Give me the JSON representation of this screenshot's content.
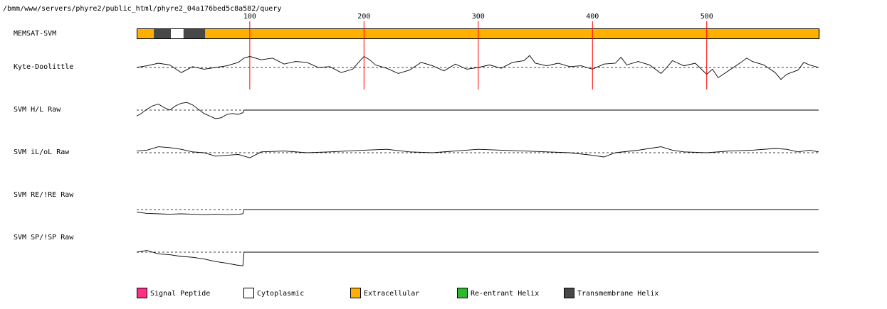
{
  "header": {
    "path": "/bmm/www/servers/phyre2/public_html/phyre2_04a176bed5c8a582/query"
  },
  "chart_data": {
    "type": "line",
    "sequence_length": 598,
    "x_ticks": [
      100,
      200,
      300,
      400,
      500
    ],
    "tick_labels": [
      "100",
      "200",
      "300",
      "400",
      "500"
    ],
    "tracks": [
      {
        "name": "MEMSAT-SVM",
        "kind": "segments",
        "segments": [
          {
            "start": 1,
            "end": 15,
            "type": "extracellular"
          },
          {
            "start": 16,
            "end": 30,
            "type": "transmembrane"
          },
          {
            "start": 31,
            "end": 41,
            "type": "cytoplasmic"
          },
          {
            "start": 42,
            "end": 60,
            "type": "transmembrane"
          },
          {
            "start": 61,
            "end": 598,
            "type": "extracellular"
          }
        ]
      },
      {
        "name": "Kyte-Doolittle",
        "kind": "profile",
        "points": [
          [
            1,
            0.0
          ],
          [
            10,
            0.2
          ],
          [
            20,
            0.5
          ],
          [
            30,
            0.3
          ],
          [
            40,
            -0.6
          ],
          [
            50,
            0.1
          ],
          [
            60,
            -0.2
          ],
          [
            70,
            0.0
          ],
          [
            80,
            0.2
          ],
          [
            90,
            0.6
          ],
          [
            95,
            1.1
          ],
          [
            100,
            1.3
          ],
          [
            110,
            0.9
          ],
          [
            120,
            1.1
          ],
          [
            130,
            0.4
          ],
          [
            140,
            0.7
          ],
          [
            150,
            0.6
          ],
          [
            160,
            0.0
          ],
          [
            170,
            0.1
          ],
          [
            180,
            -0.6
          ],
          [
            190,
            -0.2
          ],
          [
            200,
            1.3
          ],
          [
            205,
            0.9
          ],
          [
            210,
            0.3
          ],
          [
            220,
            -0.1
          ],
          [
            230,
            -0.7
          ],
          [
            240,
            -0.3
          ],
          [
            250,
            0.6
          ],
          [
            260,
            0.2
          ],
          [
            270,
            -0.4
          ],
          [
            280,
            0.4
          ],
          [
            290,
            -0.2
          ],
          [
            300,
            0.0
          ],
          [
            310,
            0.3
          ],
          [
            320,
            -0.1
          ],
          [
            330,
            0.6
          ],
          [
            340,
            0.8
          ],
          [
            345,
            1.4
          ],
          [
            350,
            0.5
          ],
          [
            360,
            0.2
          ],
          [
            370,
            0.5
          ],
          [
            380,
            0.1
          ],
          [
            390,
            0.2
          ],
          [
            400,
            -0.2
          ],
          [
            410,
            0.4
          ],
          [
            420,
            0.5
          ],
          [
            425,
            1.2
          ],
          [
            430,
            0.3
          ],
          [
            440,
            0.7
          ],
          [
            450,
            0.3
          ],
          [
            460,
            -0.7
          ],
          [
            465,
            0.0
          ],
          [
            470,
            0.8
          ],
          [
            480,
            0.2
          ],
          [
            490,
            0.5
          ],
          [
            500,
            -0.8
          ],
          [
            505,
            -0.2
          ],
          [
            510,
            -1.2
          ],
          [
            520,
            -0.3
          ],
          [
            530,
            0.6
          ],
          [
            535,
            1.1
          ],
          [
            540,
            0.7
          ],
          [
            550,
            0.3
          ],
          [
            560,
            -0.6
          ],
          [
            565,
            -1.4
          ],
          [
            570,
            -0.8
          ],
          [
            580,
            -0.3
          ],
          [
            585,
            0.6
          ],
          [
            590,
            0.3
          ],
          [
            598,
            0.0
          ]
        ],
        "range": [
          -2,
          2
        ]
      },
      {
        "name": "SVM H/L Raw",
        "kind": "profile",
        "points": [
          [
            1,
            -0.7
          ],
          [
            5,
            -0.4
          ],
          [
            10,
            0.1
          ],
          [
            15,
            0.5
          ],
          [
            20,
            0.7
          ],
          [
            25,
            0.3
          ],
          [
            30,
            0.0
          ],
          [
            35,
            0.5
          ],
          [
            40,
            0.8
          ],
          [
            45,
            0.9
          ],
          [
            50,
            0.6
          ],
          [
            55,
            0.1
          ],
          [
            60,
            -0.4
          ],
          [
            65,
            -0.7
          ],
          [
            70,
            -1.0
          ],
          [
            75,
            -0.9
          ],
          [
            80,
            -0.5
          ],
          [
            85,
            -0.4
          ],
          [
            90,
            -0.5
          ],
          [
            94,
            -0.3
          ],
          [
            95,
            0.0
          ],
          [
            598,
            0.0
          ]
        ],
        "range": [
          -2,
          2
        ]
      },
      {
        "name": "SVM iL/oL Raw",
        "kind": "profile",
        "points": [
          [
            1,
            0.2
          ],
          [
            10,
            0.3
          ],
          [
            20,
            0.7
          ],
          [
            30,
            0.6
          ],
          [
            40,
            0.4
          ],
          [
            50,
            0.1
          ],
          [
            60,
            0.0
          ],
          [
            70,
            -0.4
          ],
          [
            80,
            -0.3
          ],
          [
            90,
            -0.2
          ],
          [
            100,
            -0.6
          ],
          [
            110,
            0.1
          ],
          [
            130,
            0.2
          ],
          [
            150,
            0.0
          ],
          [
            170,
            0.1
          ],
          [
            200,
            0.3
          ],
          [
            220,
            0.4
          ],
          [
            240,
            0.1
          ],
          [
            260,
            0.0
          ],
          [
            280,
            0.2
          ],
          [
            300,
            0.4
          ],
          [
            320,
            0.3
          ],
          [
            340,
            0.2
          ],
          [
            360,
            0.1
          ],
          [
            380,
            0.0
          ],
          [
            400,
            -0.3
          ],
          [
            410,
            -0.5
          ],
          [
            420,
            0.0
          ],
          [
            440,
            0.3
          ],
          [
            450,
            0.5
          ],
          [
            460,
            0.7
          ],
          [
            470,
            0.3
          ],
          [
            480,
            0.1
          ],
          [
            500,
            0.0
          ],
          [
            520,
            0.2
          ],
          [
            540,
            0.3
          ],
          [
            560,
            0.5
          ],
          [
            570,
            0.4
          ],
          [
            580,
            0.1
          ],
          [
            590,
            0.3
          ],
          [
            598,
            0.1
          ]
        ],
        "range": [
          -2,
          2
        ]
      },
      {
        "name": "SVM RE/!RE Raw",
        "kind": "profile",
        "points": [
          [
            1,
            -0.3
          ],
          [
            10,
            -0.45
          ],
          [
            20,
            -0.5
          ],
          [
            30,
            -0.55
          ],
          [
            40,
            -0.5
          ],
          [
            50,
            -0.55
          ],
          [
            60,
            -0.6
          ],
          [
            70,
            -0.55
          ],
          [
            80,
            -0.6
          ],
          [
            90,
            -0.55
          ],
          [
            94,
            -0.5
          ],
          [
            95,
            0.0
          ],
          [
            598,
            0.0
          ]
        ],
        "range": [
          -2,
          2
        ]
      },
      {
        "name": "SVM SP/!SP Raw",
        "kind": "profile",
        "points": [
          [
            1,
            0.0
          ],
          [
            5,
            0.1
          ],
          [
            10,
            0.2
          ],
          [
            15,
            0.0
          ],
          [
            20,
            -0.2
          ],
          [
            30,
            -0.3
          ],
          [
            40,
            -0.5
          ],
          [
            50,
            -0.6
          ],
          [
            60,
            -0.8
          ],
          [
            70,
            -1.1
          ],
          [
            80,
            -1.3
          ],
          [
            88,
            -1.5
          ],
          [
            94,
            -1.6
          ],
          [
            95,
            0.0
          ],
          [
            598,
            0.0
          ]
        ],
        "range": [
          -2,
          2
        ]
      }
    ],
    "legend": [
      {
        "label": "Signal Peptide",
        "color": "#ff2f84"
      },
      {
        "label": "Cytoplasmic",
        "color": "#ffffff"
      },
      {
        "label": "Extracellular",
        "color": "#ffb000"
      },
      {
        "label": "Re-entrant Helix",
        "color": "#2fb82f"
      },
      {
        "label": "Transmembrane Helix",
        "color": "#484848"
      }
    ],
    "colors": {
      "extracellular": "#ffb000",
      "cytoplasmic": "#ffffff",
      "transmembrane": "#484848",
      "gridline": "#ff0000"
    }
  }
}
